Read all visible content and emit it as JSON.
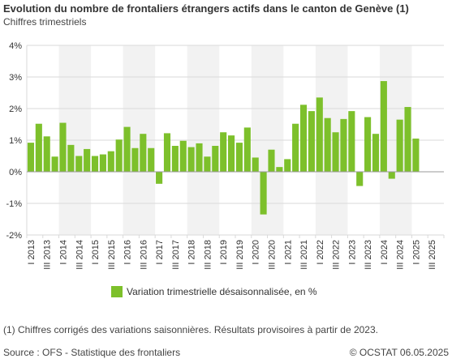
{
  "title": "Evolution du nombre de frontaliers étrangers actifs dans le canton de Genève (1)",
  "subtitle": "Chiffres trimestriels",
  "note": "(1) Chiffres corrigés des variations saisonnières. Résultats provisoires à partir de 2023.",
  "source": "Source : OFS - Statistique des frontaliers",
  "copyright": "© OCSTAT 06.05.2025",
  "colors": {
    "bar": "#7dc02b",
    "band": "#f2f2f2",
    "grid": "#d9d9d9",
    "zero": "#999999"
  },
  "chart_data": {
    "type": "bar",
    "categories": [
      "I 2013",
      "II 2013",
      "III 2013",
      "IV 2013",
      "I 2014",
      "II 2014",
      "III 2014",
      "IV 2014",
      "I 2015",
      "II 2015",
      "III 2015",
      "IV 2015",
      "I 2016",
      "II 2016",
      "III 2016",
      "IV 2016",
      "I 2017",
      "II 2017",
      "III 2017",
      "IV 2017",
      "I 2018",
      "II 2018",
      "III 2018",
      "IV 2018",
      "I 2019",
      "II 2019",
      "III 2019",
      "IV 2019",
      "I 2020",
      "II 2020",
      "III 2020",
      "IV 2020",
      "I 2021",
      "II 2021",
      "III 2021",
      "IV 2021",
      "I 2022",
      "II 2022",
      "III 2022",
      "IV 2022",
      "I 2023",
      "II 2023",
      "III 2023",
      "IV 2023",
      "I 2024",
      "II 2024",
      "III 2024",
      "IV 2024",
      "I 2025",
      "II 2025",
      "III 2025",
      "IV 2025"
    ],
    "tick_labels": [
      "I 2013",
      "III 2013",
      "I 2014",
      "III 2014",
      "I 2015",
      "III 2015",
      "I 2016",
      "III 2016",
      "I 2017",
      "III 2017",
      "I 2018",
      "III 2018",
      "I 2019",
      "III 2019",
      "I 2020",
      "III 2020",
      "I 2021",
      "III 2021",
      "I 2022",
      "III 2022",
      "I 2023",
      "III 2023",
      "I 2024",
      "III 2024",
      "I 2025",
      "III 2025"
    ],
    "series": [
      {
        "name": "Variation trimestrielle désaisonnalisée, en %",
        "values": [
          0.92,
          1.52,
          1.12,
          0.48,
          1.55,
          0.85,
          0.5,
          0.72,
          0.5,
          0.55,
          0.65,
          1.02,
          1.42,
          0.75,
          1.2,
          0.75,
          -0.38,
          1.22,
          0.82,
          0.98,
          0.78,
          0.9,
          0.48,
          0.82,
          1.25,
          1.15,
          0.92,
          1.4,
          0.45,
          -1.35,
          0.7,
          0.15,
          0.4,
          1.52,
          2.12,
          1.92,
          2.35,
          1.7,
          1.25,
          1.67,
          1.92,
          -0.45,
          1.73,
          1.2,
          2.87,
          -0.22,
          1.65,
          2.05,
          1.05,
          null,
          null,
          null
        ]
      }
    ],
    "ylim": [
      -2,
      4
    ],
    "yticks": [
      -2,
      -1,
      0,
      1,
      2,
      3,
      4
    ],
    "ytick_labels": [
      "-2%",
      "-1%",
      "0%",
      "1%",
      "2%",
      "3%",
      "4%"
    ],
    "xlabel": "",
    "ylabel": "",
    "grid": true,
    "legend_position": "bottom"
  }
}
